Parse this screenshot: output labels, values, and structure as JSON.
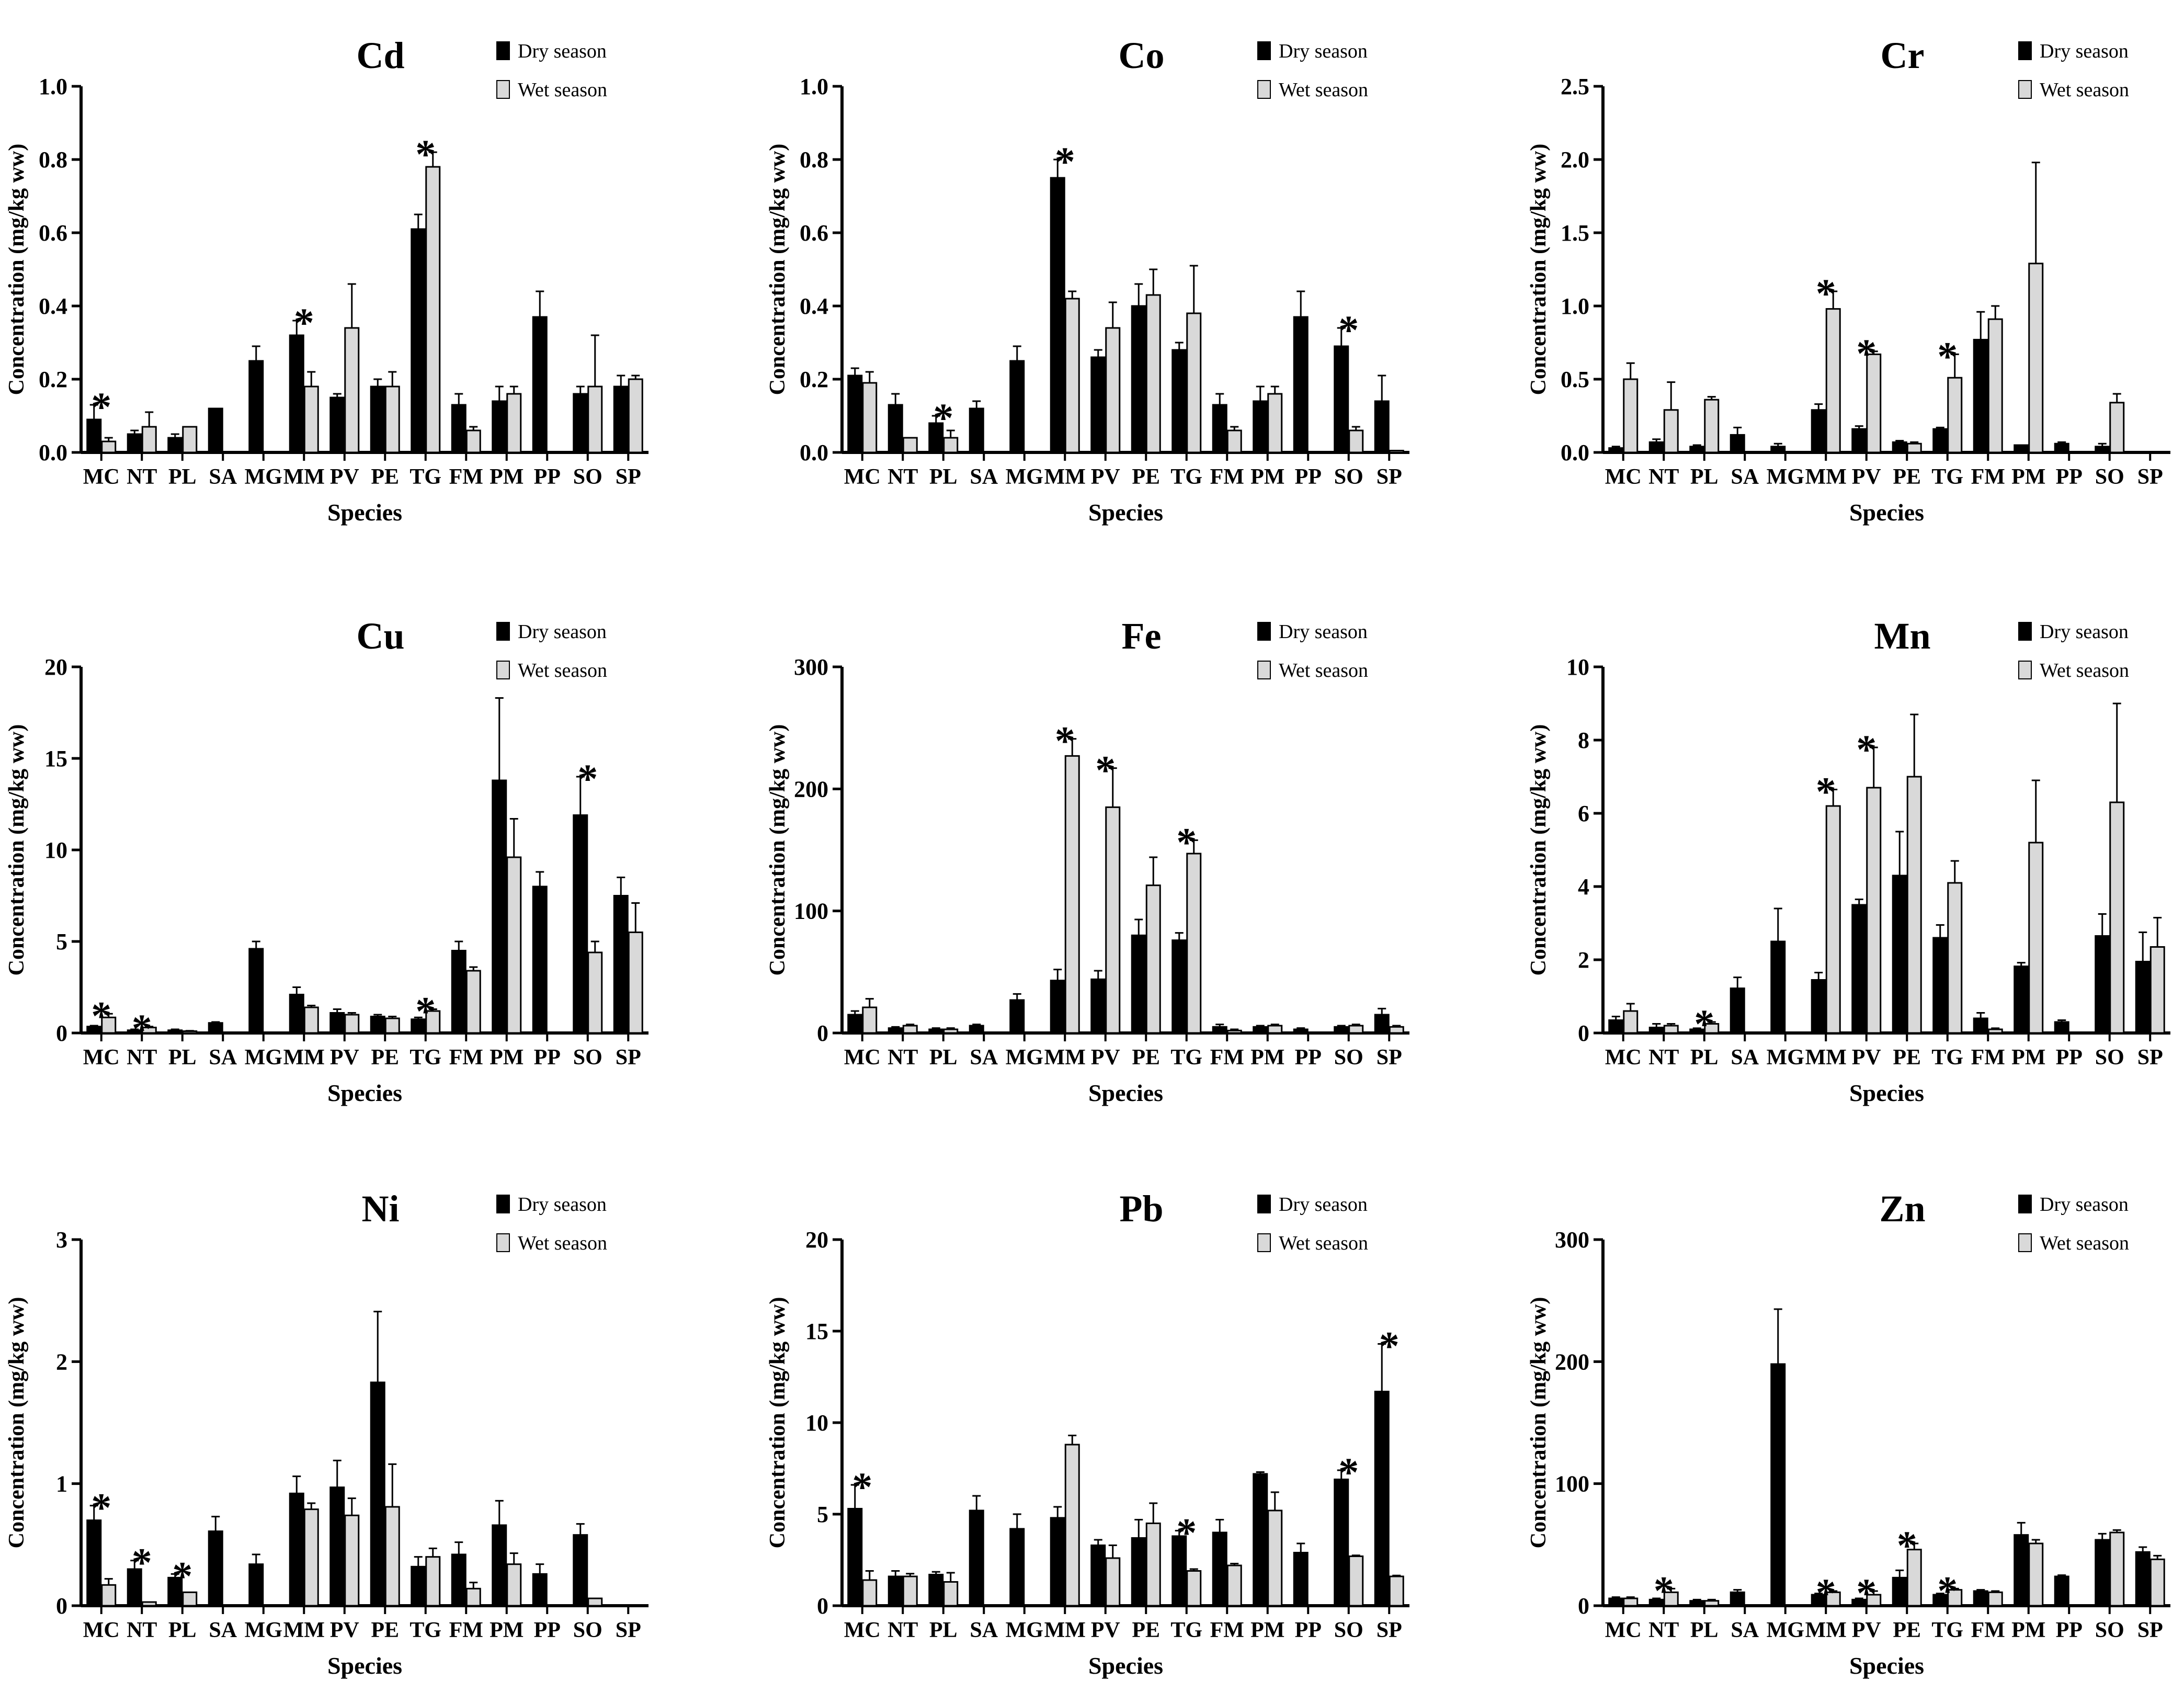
{
  "legend": {
    "dry": "Dry season",
    "wet": "Wet season"
  },
  "colors": {
    "dry": "#000000",
    "wet": "#d9d9d9",
    "axis": "#000000"
  },
  "chart_data": [
    {
      "type": "bar",
      "title": "Cd",
      "xlabel": "Species",
      "ylabel": "Concentration (mg/kg ww)",
      "ylim": [
        0,
        1.0
      ],
      "yticks": [
        "0.0",
        "0.2",
        "0.4",
        "0.6",
        "0.8",
        "1.0"
      ],
      "categories": [
        "MC",
        "NT",
        "PL",
        "SA",
        "MG",
        "MM",
        "PV",
        "PE",
        "TG",
        "FM",
        "PM",
        "PP",
        "SO",
        "SP"
      ],
      "series": [
        {
          "name": "Dry season",
          "values": [
            0.09,
            0.05,
            0.04,
            0.12,
            0.25,
            0.32,
            0.15,
            0.18,
            0.61,
            0.13,
            0.14,
            0.37,
            0.16,
            0.18
          ],
          "errors": [
            0.04,
            0.01,
            0.01,
            0,
            0.04,
            0.04,
            0.01,
            0.02,
            0.04,
            0.03,
            0.04,
            0.07,
            0.02,
            0.03
          ]
        },
        {
          "name": "Wet season",
          "values": [
            0.03,
            0.07,
            0.07,
            null,
            null,
            0.18,
            0.34,
            0.18,
            0.78,
            0.06,
            0.16,
            null,
            0.18,
            0.2
          ],
          "errors": [
            0.01,
            0.04,
            0,
            0,
            0,
            0.04,
            0.12,
            0.04,
            0.04,
            0.01,
            0.02,
            0,
            0.14,
            0.01
          ]
        }
      ],
      "significant": [
        "MC",
        "MM",
        "TG"
      ]
    },
    {
      "type": "bar",
      "title": "Co",
      "xlabel": "Species",
      "ylabel": "Concentration (mg/kg ww)",
      "ylim": [
        0,
        1.0
      ],
      "yticks": [
        "0.0",
        "0.2",
        "0.4",
        "0.6",
        "0.8",
        "1.0"
      ],
      "categories": [
        "MC",
        "NT",
        "PL",
        "SA",
        "MG",
        "MM",
        "PV",
        "PE",
        "TG",
        "FM",
        "PM",
        "PP",
        "SO",
        "SP"
      ],
      "series": [
        {
          "name": "Dry season",
          "values": [
            0.21,
            0.13,
            0.08,
            0.12,
            0.25,
            0.75,
            0.26,
            0.4,
            0.28,
            0.13,
            0.14,
            0.37,
            0.29,
            0.14
          ],
          "errors": [
            0.02,
            0.03,
            0.02,
            0.02,
            0.04,
            0.05,
            0.02,
            0.06,
            0.02,
            0.03,
            0.04,
            0.07,
            0.05,
            0.07
          ]
        },
        {
          "name": "Wet season",
          "values": [
            0.19,
            0.04,
            0.04,
            null,
            null,
            0.42,
            0.34,
            0.43,
            0.38,
            0.06,
            0.16,
            null,
            0.06,
            0.005
          ],
          "errors": [
            0.03,
            0,
            0.02,
            0,
            0,
            0.02,
            0.07,
            0.07,
            0.13,
            0.01,
            0.02,
            0,
            0.01,
            0
          ]
        }
      ],
      "significant": [
        "PL",
        "MM",
        "SO"
      ]
    },
    {
      "type": "bar",
      "title": "Cr",
      "xlabel": "Species",
      "ylabel": "Concentration (mg/kg ww)",
      "ylim": [
        0,
        2.5
      ],
      "yticks": [
        "0.0",
        "0.5",
        "1.0",
        "1.5",
        "2.0",
        "2.5"
      ],
      "categories": [
        "MC",
        "NT",
        "PL",
        "SA",
        "MG",
        "MM",
        "PV",
        "PE",
        "TG",
        "FM",
        "PM",
        "PP",
        "SO",
        "SP"
      ],
      "series": [
        {
          "name": "Dry season",
          "values": [
            0.03,
            0.07,
            0.04,
            0.12,
            0.04,
            0.29,
            0.16,
            0.07,
            0.16,
            0.77,
            0.05,
            0.06,
            0.04,
            null
          ],
          "errors": [
            0.01,
            0.02,
            0.01,
            0.05,
            0.02,
            0.04,
            0.02,
            0.01,
            0.01,
            0.19,
            0,
            0.01,
            0.02,
            0
          ]
        },
        {
          "name": "Wet season",
          "values": [
            0.5,
            0.29,
            0.36,
            null,
            null,
            0.98,
            0.67,
            0.06,
            0.51,
            0.91,
            1.29,
            null,
            0.34,
            null
          ],
          "errors": [
            0.11,
            0.19,
            0.02,
            0,
            0,
            0.12,
            0.02,
            0.01,
            0.16,
            0.09,
            0.69,
            0,
            0.06,
            0
          ]
        }
      ],
      "significant": [
        "MM",
        "PV",
        "TG"
      ]
    },
    {
      "type": "bar",
      "title": "Cu",
      "xlabel": "Species",
      "ylabel": "Concentration (mg/kg ww)",
      "ylim": [
        0,
        20
      ],
      "yticks": [
        "0",
        "5",
        "10",
        "15",
        "20"
      ],
      "categories": [
        "MC",
        "NT",
        "PL",
        "SA",
        "MG",
        "MM",
        "PV",
        "PE",
        "TG",
        "FM",
        "PM",
        "PP",
        "SO",
        "SP"
      ],
      "series": [
        {
          "name": "Dry season",
          "values": [
            0.35,
            0.15,
            0.15,
            0.55,
            4.6,
            2.1,
            1.1,
            0.9,
            0.75,
            4.5,
            13.8,
            8.0,
            11.9,
            7.5
          ],
          "errors": [
            0.05,
            0.05,
            0.05,
            0.05,
            0.4,
            0.4,
            0.2,
            0.1,
            0.1,
            0.5,
            4.5,
            0.8,
            2.1,
            1.0
          ]
        },
        {
          "name": "Wet season",
          "values": [
            0.85,
            0.3,
            0.1,
            null,
            null,
            1.4,
            1.0,
            0.8,
            1.2,
            3.4,
            9.6,
            null,
            4.4,
            5.5
          ],
          "errors": [
            0.2,
            0.05,
            0.02,
            0,
            0,
            0.1,
            0.1,
            0.1,
            0.1,
            0.2,
            2.1,
            0,
            0.6,
            1.6
          ]
        }
      ],
      "significant": [
        "MC",
        "NT",
        "TG",
        "SO"
      ]
    },
    {
      "type": "bar",
      "title": "Fe",
      "xlabel": "Species",
      "ylabel": "Concentration (mg/kg ww)",
      "ylim": [
        0,
        300
      ],
      "yticks": [
        "0",
        "100",
        "200",
        "300"
      ],
      "categories": [
        "MC",
        "NT",
        "PL",
        "SA",
        "MG",
        "MM",
        "PV",
        "PE",
        "TG",
        "FM",
        "PM",
        "PP",
        "SO",
        "SP"
      ],
      "series": [
        {
          "name": "Dry season",
          "values": [
            15,
            4,
            3,
            6,
            27,
            43,
            44,
            80,
            76,
            5,
            5,
            3,
            5,
            15
          ],
          "errors": [
            3,
            1,
            1,
            1,
            5,
            9,
            7,
            13,
            6,
            2,
            1,
            1,
            1,
            5
          ]
        },
        {
          "name": "Wet season",
          "values": [
            21,
            6,
            3,
            null,
            null,
            227,
            185,
            121,
            147,
            2,
            6,
            null,
            6,
            5
          ],
          "errors": [
            7,
            1,
            1,
            0,
            0,
            14,
            32,
            23,
            11,
            1,
            1,
            0,
            1,
            1
          ]
        }
      ],
      "significant": [
        "MM",
        "PV",
        "TG"
      ]
    },
    {
      "type": "bar",
      "title": "Mn",
      "xlabel": "Species",
      "ylabel": "Concentration (mg/kg ww)",
      "ylim": [
        0,
        10
      ],
      "yticks": [
        "0",
        "2",
        "4",
        "6",
        "8",
        "10"
      ],
      "categories": [
        "MC",
        "NT",
        "PL",
        "SA",
        "MG",
        "MM",
        "PV",
        "PE",
        "TG",
        "FM",
        "PM",
        "PP",
        "SO",
        "SP"
      ],
      "series": [
        {
          "name": "Dry season",
          "values": [
            0.35,
            0.15,
            0.1,
            1.22,
            2.5,
            1.45,
            3.5,
            4.3,
            2.6,
            0.4,
            1.82,
            0.3,
            2.65,
            1.95
          ],
          "errors": [
            0.1,
            0.1,
            0.03,
            0.3,
            0.9,
            0.2,
            0.15,
            1.2,
            0.35,
            0.15,
            0.1,
            0.05,
            0.6,
            0.8
          ]
        },
        {
          "name": "Wet season",
          "values": [
            0.6,
            0.2,
            0.25,
            null,
            null,
            6.2,
            6.7,
            7.0,
            4.1,
            0.1,
            5.2,
            null,
            6.3,
            2.35
          ],
          "errors": [
            0.2,
            0.05,
            0.05,
            0,
            0,
            0.45,
            1.1,
            1.7,
            0.6,
            0.03,
            1.7,
            0,
            2.7,
            0.8
          ]
        }
      ],
      "significant": [
        "PL",
        "MM",
        "PV"
      ]
    },
    {
      "type": "bar",
      "title": "Ni",
      "xlabel": "Species",
      "ylabel": "Concentration (mg/kg ww)",
      "ylim": [
        0,
        3
      ],
      "yticks": [
        "0",
        "1",
        "2",
        "3"
      ],
      "categories": [
        "MC",
        "NT",
        "PL",
        "SA",
        "MG",
        "MM",
        "PV",
        "PE",
        "TG",
        "FM",
        "PM",
        "PP",
        "SO",
        "SP"
      ],
      "series": [
        {
          "name": "Dry season",
          "values": [
            0.7,
            0.3,
            0.23,
            0.61,
            0.34,
            0.92,
            0.97,
            1.83,
            0.32,
            0.42,
            0.66,
            0.26,
            0.58,
            null
          ],
          "errors": [
            0.12,
            0.07,
            0.03,
            0.12,
            0.08,
            0.14,
            0.22,
            0.58,
            0.08,
            0.1,
            0.2,
            0.08,
            0.09,
            0
          ]
        },
        {
          "name": "Wet season",
          "values": [
            0.17,
            0.03,
            0.11,
            null,
            null,
            0.79,
            0.74,
            0.81,
            0.4,
            0.14,
            0.34,
            null,
            0.06,
            null
          ],
          "errors": [
            0.05,
            0,
            0,
            0,
            0,
            0.05,
            0.14,
            0.35,
            0.07,
            0.05,
            0.09,
            0,
            0,
            0
          ]
        }
      ],
      "significant": [
        "MC",
        "NT",
        "PL"
      ]
    },
    {
      "type": "bar",
      "title": "Pb",
      "xlabel": "Species",
      "ylabel": "Concentration (mg/kg ww)",
      "ylim": [
        0,
        20
      ],
      "yticks": [
        "0",
        "5",
        "10",
        "15",
        "20"
      ],
      "categories": [
        "MC",
        "NT",
        "PL",
        "SA",
        "MG",
        "MM",
        "PV",
        "PE",
        "TG",
        "FM",
        "PM",
        "PP",
        "SO",
        "SP"
      ],
      "series": [
        {
          "name": "Dry season",
          "values": [
            5.3,
            1.6,
            1.7,
            5.2,
            4.2,
            4.8,
            3.3,
            3.7,
            3.8,
            4.0,
            7.2,
            2.9,
            6.9,
            11.7
          ],
          "errors": [
            1.3,
            0.3,
            0.15,
            0.8,
            0.8,
            0.6,
            0.3,
            1.0,
            0.3,
            0.7,
            0.1,
            0.5,
            0.5,
            2.6
          ]
        },
        {
          "name": "Wet season",
          "values": [
            1.4,
            1.6,
            1.3,
            null,
            null,
            8.8,
            2.6,
            4.5,
            1.9,
            2.2,
            5.2,
            null,
            2.7,
            1.6
          ],
          "errors": [
            0.5,
            0.15,
            0.5,
            0,
            0,
            0.5,
            0.7,
            1.1,
            0.1,
            0.1,
            1.0,
            0,
            0.05,
            0.05
          ]
        }
      ],
      "significant": [
        "MC",
        "TG",
        "SO",
        "SP"
      ]
    },
    {
      "type": "bar",
      "title": "Zn",
      "xlabel": "Species",
      "ylabel": "Concentration (mg/kg ww)",
      "ylim": [
        0,
        300
      ],
      "yticks": [
        "0",
        "100",
        "200",
        "300"
      ],
      "categories": [
        "MC",
        "NT",
        "PL",
        "SA",
        "MG",
        "MM",
        "PV",
        "PE",
        "TG",
        "FM",
        "PM",
        "PP",
        "SO",
        "SP"
      ],
      "series": [
        {
          "name": "Dry season",
          "values": [
            6,
            5,
            4,
            11,
            198,
            9,
            5,
            23,
            9,
            12,
            58,
            24,
            54,
            44
          ],
          "errors": [
            1,
            1,
            1,
            2,
            45,
            1,
            1,
            6,
            1,
            1,
            10,
            1,
            5,
            4
          ]
        },
        {
          "name": "Wet season",
          "values": [
            6,
            11,
            4,
            null,
            null,
            11,
            9,
            46,
            13,
            11,
            51,
            null,
            60,
            38
          ],
          "errors": [
            1,
            3,
            1,
            0,
            0,
            1,
            3,
            5,
            1,
            1,
            3,
            0,
            2,
            3
          ]
        }
      ],
      "significant": [
        "NT",
        "MM",
        "PV",
        "PE",
        "TG"
      ]
    }
  ]
}
